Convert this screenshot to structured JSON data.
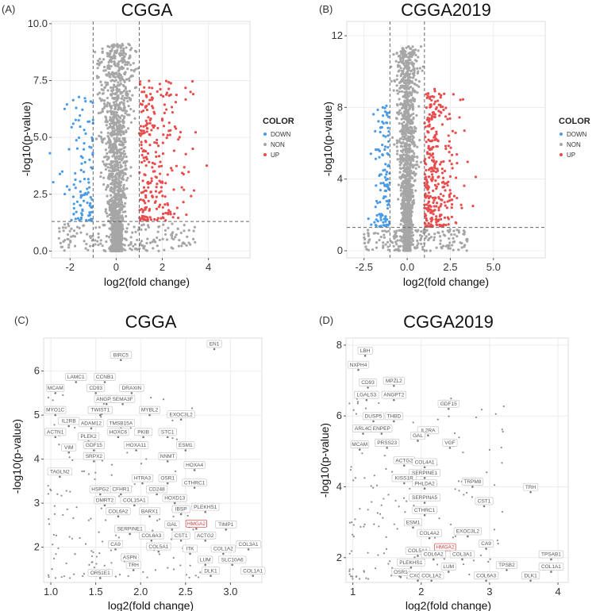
{
  "colors": {
    "down": "#4a9be6",
    "non": "#a6a6a6",
    "up": "#e84c4c",
    "grid": "#ececec",
    "highlight": "#d33a3a"
  },
  "legend": {
    "title": "COLOR",
    "items": [
      "DOWN",
      "NON",
      "UP"
    ]
  },
  "chart_data": [
    {
      "type": "scatter",
      "panel": "(A)",
      "title": "CGGA",
      "xlabel": "log2(fold change)",
      "ylabel": "-log10(p-value)",
      "xlim": [
        -2.8,
        5.8
      ],
      "ylim": [
        -0.3,
        10.1
      ],
      "xticks": [
        -2,
        0,
        2,
        4
      ],
      "yticks": [
        "0.0",
        "2.5",
        "5.0",
        "7.5",
        "10.0"
      ],
      "vlines": [
        -1,
        1
      ],
      "hline": 1.3,
      "density": {
        "non_count": 1400,
        "xspread": 0.55,
        "ymax": 9.9
      },
      "up_points": 260,
      "down_points": 110,
      "legend": true
    },
    {
      "type": "scatter",
      "panel": "(B)",
      "title": "CGGA2019",
      "xlabel": "log2(fold change)",
      "ylabel": "-log10(p-value)",
      "xlim": [
        -3.5,
        8.0
      ],
      "ylim": [
        -0.4,
        12.8
      ],
      "xticks": [
        "-2.5",
        "0.0",
        "2.5",
        "5.0"
      ],
      "yticks": [
        0,
        4,
        8,
        12
      ],
      "vlines": [
        -1,
        1
      ],
      "hline": 1.3,
      "density": {
        "non_count": 1500,
        "xspread": 0.5,
        "ymax": 12.4
      },
      "up_points": 320,
      "down_points": 120,
      "legend": true
    },
    {
      "type": "scatter",
      "panel": "(C)",
      "title": "CGGA",
      "xlabel": "log2(fold change)",
      "ylabel": "-log10(p-value)",
      "xlim": [
        0.92,
        3.35
      ],
      "ylim": [
        1.2,
        6.75
      ],
      "xticks": [
        "1.0",
        "1.5",
        "2.0",
        "2.5",
        "3.0"
      ],
      "yticks": [
        2,
        3,
        4,
        5,
        6
      ],
      "labels": [
        {
          "g": "EN1",
          "x": 2.82,
          "y": 6.5
        },
        {
          "g": "BIRC5",
          "x": 1.78,
          "y": 6.25
        },
        {
          "g": "LAMC1",
          "x": 1.28,
          "y": 5.75
        },
        {
          "g": "CCNB1",
          "x": 1.6,
          "y": 5.75
        },
        {
          "g": "MCAM",
          "x": 1.05,
          "y": 5.5
        },
        {
          "g": "CD93",
          "x": 1.5,
          "y": 5.5
        },
        {
          "g": "DRAXIN",
          "x": 1.9,
          "y": 5.5
        },
        {
          "g": "ANGPT2",
          "x": 1.62,
          "y": 5.25
        },
        {
          "g": "SEMA3F",
          "x": 1.8,
          "y": 5.25
        },
        {
          "g": "MYO1C",
          "x": 1.05,
          "y": 5.0
        },
        {
          "g": "TWIST1",
          "x": 1.55,
          "y": 5.0
        },
        {
          "g": "MYBL2",
          "x": 2.1,
          "y": 5.0
        },
        {
          "g": "EXOC3L2",
          "x": 2.45,
          "y": 4.9
        },
        {
          "g": "IL2RB",
          "x": 1.2,
          "y": 4.75
        },
        {
          "g": "ADAM12",
          "x": 1.45,
          "y": 4.7
        },
        {
          "g": "TMSB15A",
          "x": 1.78,
          "y": 4.7
        },
        {
          "g": "ACTN1",
          "x": 1.05,
          "y": 4.5
        },
        {
          "g": "HOXC6",
          "x": 1.75,
          "y": 4.5
        },
        {
          "g": "PKIB",
          "x": 2.03,
          "y": 4.5
        },
        {
          "g": "STC1",
          "x": 2.3,
          "y": 4.5
        },
        {
          "g": "PLEK2",
          "x": 1.42,
          "y": 4.4
        },
        {
          "g": "GDF15",
          "x": 1.48,
          "y": 4.2
        },
        {
          "g": "HOXA11",
          "x": 1.95,
          "y": 4.2
        },
        {
          "g": "ESM1",
          "x": 2.5,
          "y": 4.2
        },
        {
          "g": "VIM",
          "x": 1.2,
          "y": 4.15
        },
        {
          "g": "NNMT",
          "x": 2.3,
          "y": 3.95
        },
        {
          "g": "SRPX2",
          "x": 1.48,
          "y": 3.95
        },
        {
          "g": "HOXA4",
          "x": 2.6,
          "y": 3.75
        },
        {
          "g": "TAGLN2",
          "x": 1.1,
          "y": 3.6
        },
        {
          "g": "HTRA3",
          "x": 2.02,
          "y": 3.45
        },
        {
          "g": "OSR1",
          "x": 2.3,
          "y": 3.45
        },
        {
          "g": "CTHRC1",
          "x": 2.6,
          "y": 3.35
        },
        {
          "g": "HSPG2",
          "x": 1.55,
          "y": 3.2
        },
        {
          "g": "CFHR1",
          "x": 1.78,
          "y": 3.2
        },
        {
          "g": "CD248",
          "x": 2.18,
          "y": 3.2
        },
        {
          "g": "HOXD13",
          "x": 2.38,
          "y": 3.0
        },
        {
          "g": "DMRT2",
          "x": 1.6,
          "y": 2.95
        },
        {
          "g": "COL15A1",
          "x": 1.93,
          "y": 2.95
        },
        {
          "g": "PLEKHS1",
          "x": 2.72,
          "y": 2.8
        },
        {
          "g": "COL6A2",
          "x": 1.75,
          "y": 2.7
        },
        {
          "g": "BARX1",
          "x": 2.1,
          "y": 2.7
        },
        {
          "g": "IBSP",
          "x": 2.45,
          "y": 2.75
        },
        {
          "g": "GAL",
          "x": 2.35,
          "y": 2.4
        },
        {
          "g": "HMGA2",
          "x": 2.62,
          "y": 2.42,
          "highlight": true
        },
        {
          "g": "TIMP1",
          "x": 2.95,
          "y": 2.4
        },
        {
          "g": "SERPINE1",
          "x": 1.88,
          "y": 2.3
        },
        {
          "g": "COL6A3",
          "x": 2.12,
          "y": 2.15
        },
        {
          "g": "CST1",
          "x": 2.45,
          "y": 2.15
        },
        {
          "g": "ACTG2",
          "x": 2.72,
          "y": 2.15
        },
        {
          "g": "CA9",
          "x": 1.72,
          "y": 1.95
        },
        {
          "g": "COL5A1",
          "x": 2.2,
          "y": 1.9
        },
        {
          "g": "ITK",
          "x": 2.55,
          "y": 1.85
        },
        {
          "g": "COL1A2",
          "x": 2.92,
          "y": 1.85
        },
        {
          "g": "COL3A1",
          "x": 3.2,
          "y": 1.95
        },
        {
          "g": "ASPN",
          "x": 1.88,
          "y": 1.65
        },
        {
          "g": "LUM",
          "x": 2.72,
          "y": 1.6
        },
        {
          "g": "SLC10A6",
          "x": 3.02,
          "y": 1.6
        },
        {
          "g": "TRH",
          "x": 1.92,
          "y": 1.48
        },
        {
          "g": "DLK1",
          "x": 2.78,
          "y": 1.35
        },
        {
          "g": "COL1A1",
          "x": 3.25,
          "y": 1.35
        },
        {
          "g": "OR51E1",
          "x": 1.55,
          "y": 1.3
        }
      ]
    },
    {
      "type": "scatter",
      "panel": "(D)",
      "title": "CGGA2019",
      "xlabel": "log2(fold change)",
      "ylabel": "-log10(p-value)",
      "xlim": [
        0.9,
        4.15
      ],
      "ylim": [
        1.3,
        8.2
      ],
      "xticks": [
        1,
        2,
        3,
        4
      ],
      "yticks": [
        2,
        4,
        6,
        8
      ],
      "labels": [
        {
          "g": "LBH",
          "x": 1.18,
          "y": 7.7
        },
        {
          "g": "NXPH4",
          "x": 1.08,
          "y": 7.3
        },
        {
          "g": "CD93",
          "x": 1.22,
          "y": 6.8
        },
        {
          "g": "MPZL2",
          "x": 1.6,
          "y": 6.85
        },
        {
          "g": "LGALS3",
          "x": 1.2,
          "y": 6.45
        },
        {
          "g": "ANGPT2",
          "x": 1.6,
          "y": 6.45
        },
        {
          "g": "GDF15",
          "x": 2.4,
          "y": 6.2
        },
        {
          "g": "DUSP5",
          "x": 1.3,
          "y": 5.85
        },
        {
          "g": "THBD",
          "x": 1.6,
          "y": 5.85
        },
        {
          "g": "ARL4C",
          "x": 1.15,
          "y": 5.5
        },
        {
          "g": "ENPEP",
          "x": 1.42,
          "y": 5.5
        },
        {
          "g": "IL2RA",
          "x": 2.1,
          "y": 5.45
        },
        {
          "g": "GAL",
          "x": 1.95,
          "y": 5.3
        },
        {
          "g": "VGF",
          "x": 2.42,
          "y": 5.1
        },
        {
          "g": "MCAM",
          "x": 1.1,
          "y": 5.05
        },
        {
          "g": "PRSS23",
          "x": 1.5,
          "y": 5.1
        },
        {
          "g": "ACTG2",
          "x": 1.75,
          "y": 4.6
        },
        {
          "g": "COL4A1",
          "x": 2.05,
          "y": 4.55
        },
        {
          "g": "SERPINE1",
          "x": 2.05,
          "y": 4.25
        },
        {
          "g": "KISS1R",
          "x": 1.75,
          "y": 4.1
        },
        {
          "g": "PHLDA2",
          "x": 2.05,
          "y": 3.95
        },
        {
          "g": "TRPM8",
          "x": 2.75,
          "y": 4.0
        },
        {
          "g": "TRH",
          "x": 3.6,
          "y": 3.85
        },
        {
          "g": "SERPINA5",
          "x": 2.05,
          "y": 3.55
        },
        {
          "g": "CST1",
          "x": 2.92,
          "y": 3.45
        },
        {
          "g": "CTHRC1",
          "x": 2.05,
          "y": 3.2
        },
        {
          "g": "ESM1",
          "x": 1.88,
          "y": 2.85
        },
        {
          "g": "EXOC3L2",
          "x": 2.68,
          "y": 2.6
        },
        {
          "g": "COL4A2",
          "x": 2.12,
          "y": 2.55
        },
        {
          "g": "CA9",
          "x": 2.95,
          "y": 2.25
        },
        {
          "g": "HMGA2",
          "x": 2.35,
          "y": 2.15,
          "highlight": true
        },
        {
          "g": "COL5A1",
          "x": 1.95,
          "y": 2.05
        },
        {
          "g": "COL6A2",
          "x": 2.18,
          "y": 1.95
        },
        {
          "g": "COL3A1",
          "x": 2.6,
          "y": 1.95
        },
        {
          "g": "TPSAB1",
          "x": 3.9,
          "y": 1.95
        },
        {
          "g": "PLEKHS1",
          "x": 1.85,
          "y": 1.72
        },
        {
          "g": "LUM",
          "x": 2.4,
          "y": 1.6
        },
        {
          "g": "TPSB2",
          "x": 3.25,
          "y": 1.65
        },
        {
          "g": "COL1A1",
          "x": 3.9,
          "y": 1.6
        },
        {
          "g": "OSR1",
          "x": 1.7,
          "y": 1.45
        },
        {
          "g": "CXCL9",
          "x": 1.95,
          "y": 1.35
        },
        {
          "g": "COL1A2",
          "x": 2.15,
          "y": 1.35
        },
        {
          "g": "COL6A3",
          "x": 2.95,
          "y": 1.35
        },
        {
          "g": "DLK1",
          "x": 3.6,
          "y": 1.35
        }
      ]
    }
  ]
}
